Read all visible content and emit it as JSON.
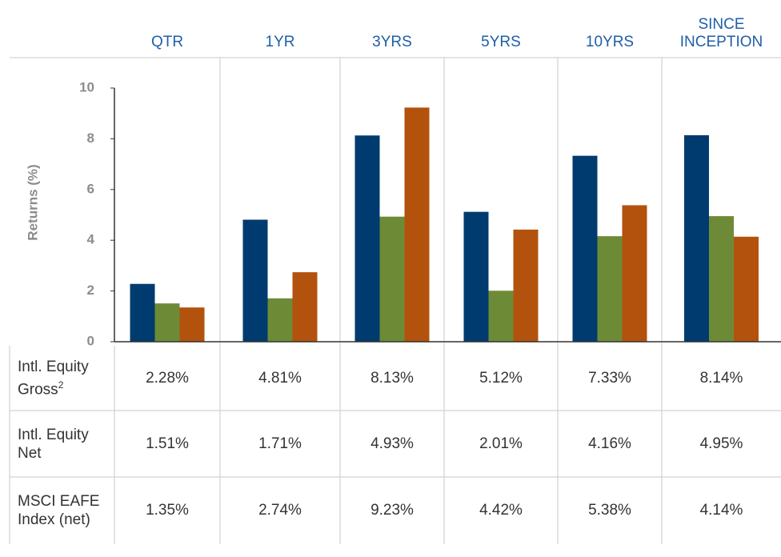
{
  "chart_data": {
    "type": "bar",
    "y_label": "Returns (%)",
    "categories": [
      "QTR",
      "1YR",
      "3YRS",
      "5YRS",
      "10YRS",
      "SINCE INCEPTION"
    ],
    "series": [
      {
        "name": "Intl. Equity Gross",
        "footnote": "2",
        "color": "#003b6f",
        "values": [
          2.28,
          4.81,
          8.13,
          5.12,
          7.33,
          8.14
        ],
        "value_labels": [
          "2.28%",
          "4.81%",
          "8.13%",
          "5.12%",
          "7.33%",
          "8.14%"
        ]
      },
      {
        "name": "Intl. Equity Net",
        "color": "#6d8b36",
        "values": [
          1.51,
          1.71,
          4.93,
          2.01,
          4.16,
          4.95
        ],
        "value_labels": [
          "1.51%",
          "1.71%",
          "4.93%",
          "2.01%",
          "4.16%",
          "4.95%"
        ]
      },
      {
        "name": "MSCI EAFE Index (net)",
        "color": "#b3520d",
        "values": [
          1.35,
          2.74,
          9.23,
          4.42,
          5.38,
          4.14
        ],
        "value_labels": [
          "1.35%",
          "2.74%",
          "9.23%",
          "4.42%",
          "5.38%",
          "4.14%"
        ]
      }
    ],
    "ylim": [
      0,
      10
    ],
    "yticks": [
      0,
      2,
      4,
      6,
      8,
      10
    ],
    "grid": false
  }
}
